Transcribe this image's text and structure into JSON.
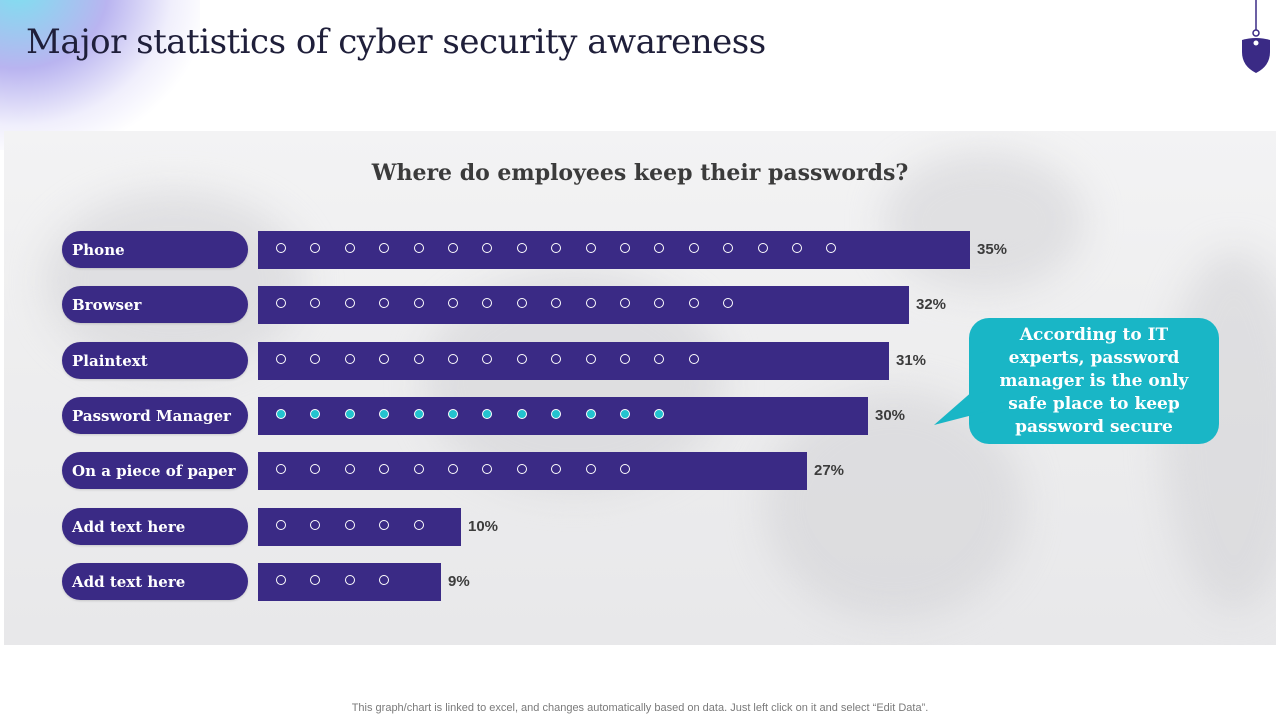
{
  "slide": {
    "title": "Major statistics of cyber security awareness",
    "footer_note": "This graph/chart is linked to excel,  and changes automatically based on data. Just left click on it and select “Edit Data”."
  },
  "callout": {
    "text": "According to IT experts, password manager is the only safe place to keep password secure"
  },
  "colors": {
    "bar": "#3a2a85",
    "highlight_dot": "#23c3cf",
    "callout": "#19b6c6"
  },
  "icons": [
    "shield-icon"
  ],
  "chart_data": {
    "type": "bar",
    "orientation": "horizontal",
    "title": "Where do employees keep their passwords?",
    "categories": [
      "Phone",
      "Browser",
      "Plaintext",
      "Password Manager",
      "On a piece of paper",
      "Add text here",
      "Add text here"
    ],
    "values": [
      35,
      32,
      31,
      30,
      27,
      10,
      9
    ],
    "value_labels": [
      "35%",
      "32%",
      "31%",
      "30%",
      "27%",
      "10%",
      "9%"
    ],
    "dot_counts": [
      17,
      14,
      13,
      12,
      11,
      5,
      4
    ],
    "highlighted_category": "Password Manager",
    "unit": "%",
    "xlabel": "",
    "ylabel": ""
  }
}
